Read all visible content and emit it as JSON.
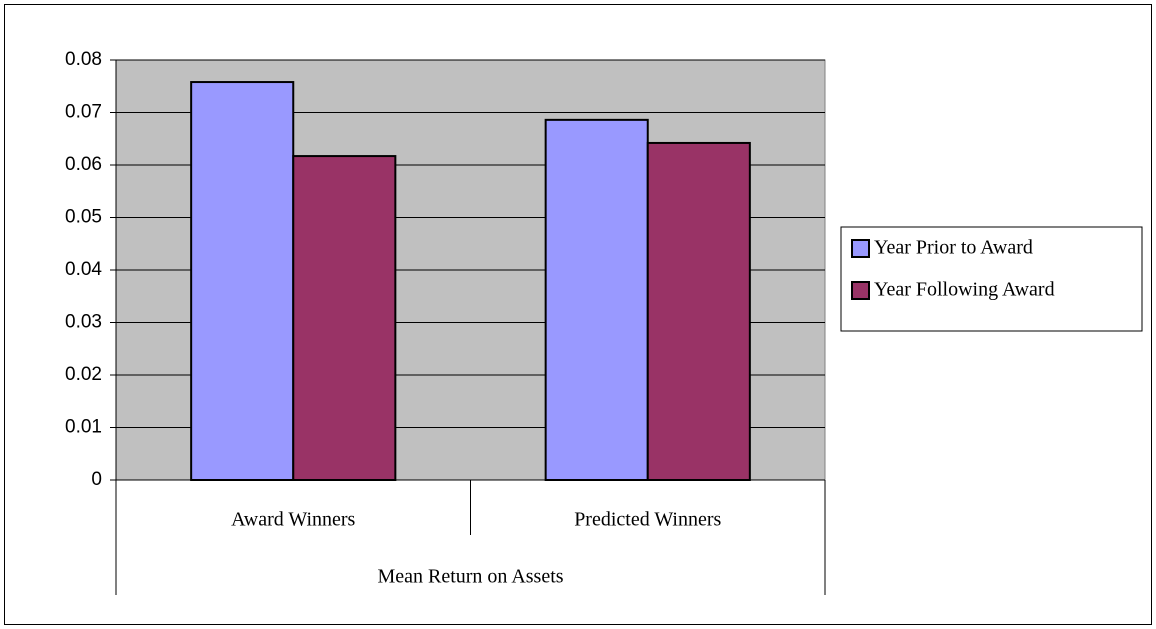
{
  "chart_data": {
    "type": "bar",
    "categories": [
      "Award Winners",
      "Predicted Winners"
    ],
    "group_label": "Mean Return on Assets",
    "series": [
      {
        "name": "Year Prior to Award",
        "color": "#9999ff",
        "values": [
          0.0758,
          0.0686
        ]
      },
      {
        "name": "Year Following Award",
        "color": "#993366",
        "values": [
          0.0617,
          0.0642
        ]
      }
    ],
    "ylim": [
      0,
      0.08
    ],
    "yticks": [
      0,
      0.01,
      0.02,
      0.03,
      0.04,
      0.05,
      0.06,
      0.07,
      0.08
    ],
    "grid": true,
    "plot_background": "#c0c0c0",
    "legend": "right"
  }
}
